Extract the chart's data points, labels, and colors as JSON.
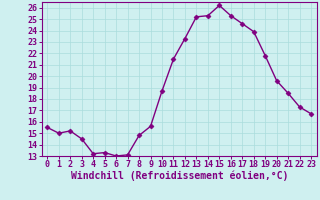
{
  "x": [
    0,
    1,
    2,
    3,
    4,
    5,
    6,
    7,
    8,
    9,
    10,
    11,
    12,
    13,
    14,
    15,
    16,
    17,
    18,
    19,
    20,
    21,
    22,
    23
  ],
  "y": [
    15.5,
    15.0,
    15.2,
    14.5,
    13.2,
    13.3,
    13.0,
    13.1,
    14.8,
    15.6,
    18.7,
    21.5,
    23.3,
    25.2,
    25.3,
    26.2,
    25.3,
    24.6,
    23.9,
    21.8,
    19.6,
    18.5,
    17.3,
    16.7
  ],
  "line_color": "#800080",
  "marker": "D",
  "marker_size": 2.5,
  "bg_color": "#cff0f0",
  "grid_color": "#aadddd",
  "xlabel": "Windchill (Refroidissement éolien,°C)",
  "ylim": [
    13,
    26.5
  ],
  "xlim": [
    -0.5,
    23.5
  ],
  "yticks": [
    13,
    14,
    15,
    16,
    17,
    18,
    19,
    20,
    21,
    22,
    23,
    24,
    25,
    26
  ],
  "xticks": [
    0,
    1,
    2,
    3,
    4,
    5,
    6,
    7,
    8,
    9,
    10,
    11,
    12,
    13,
    14,
    15,
    16,
    17,
    18,
    19,
    20,
    21,
    22,
    23
  ],
  "tick_color": "#800080",
  "tick_fontsize": 6,
  "xlabel_fontsize": 7,
  "spine_color": "#800080",
  "linewidth": 1.0
}
